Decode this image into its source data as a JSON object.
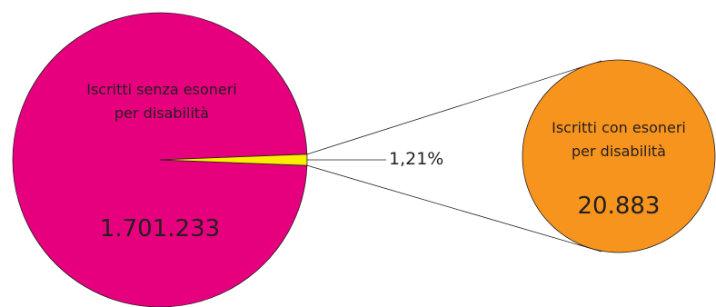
{
  "chart_data": {
    "type": "pie",
    "title": "",
    "main_pie": {
      "label_lines": [
        "Iscritti senza esoneri",
        "per disabilità"
      ],
      "value_text": "1.701.233",
      "value": 1701233
    },
    "exploded_slice": {
      "label_lines": [
        "Iscritti con esoneri",
        "per disabilità"
      ],
      "value_text": "20.883",
      "value": 20883,
      "percent_text": "1,21%",
      "percent": 1.21
    },
    "colors": {
      "main": "#e6007e",
      "slice": "#ffed00",
      "detail_circle": "#f7941d",
      "lines": "#231f20"
    }
  }
}
